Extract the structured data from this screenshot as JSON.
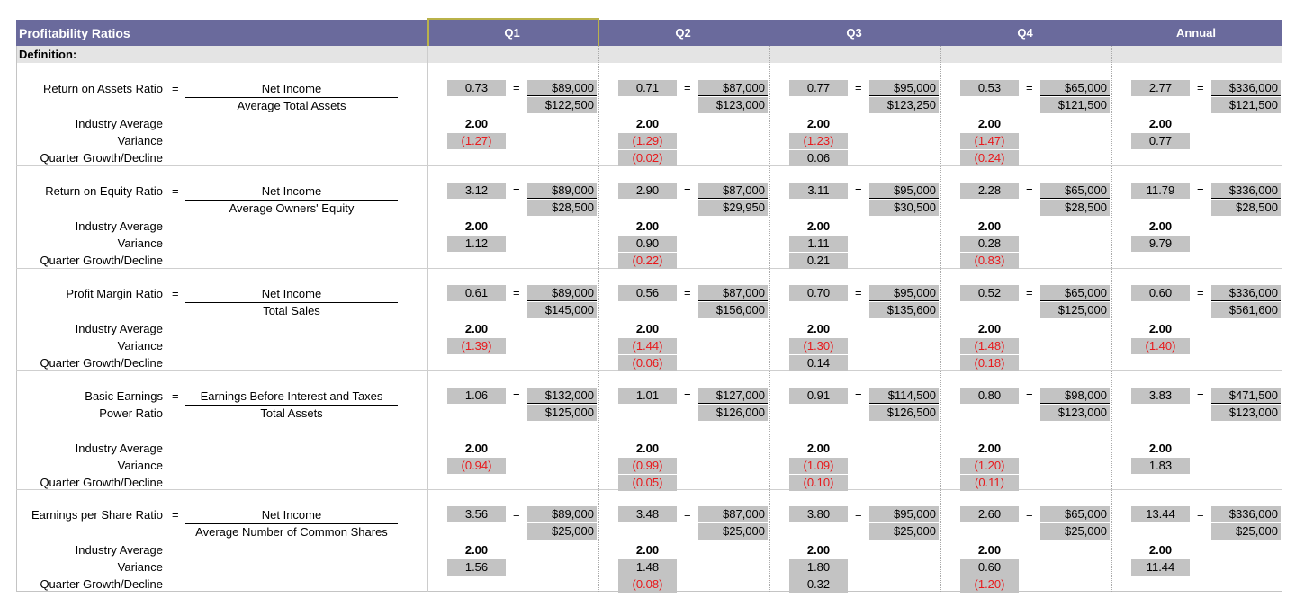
{
  "title": "Profitability Ratios",
  "definition_label": "Definition:",
  "columns": [
    "Q1",
    "Q2",
    "Q3",
    "Q4",
    "Annual"
  ],
  "equals": "=",
  "sections": [
    {
      "name": [
        "Return on Assets Ratio"
      ],
      "numerator": "Net Income",
      "denominator": "Average Total Assets",
      "labels": [
        "Industry Average",
        "Variance",
        "Quarter Growth/Decline"
      ],
      "quarters": [
        {
          "ratio": "0.73",
          "num": "$89,000",
          "den": "$122,500",
          "avg": "2.00",
          "var": "(1.27)",
          "var_neg": true,
          "growth": "",
          "growth_neg": false
        },
        {
          "ratio": "0.71",
          "num": "$87,000",
          "den": "$123,000",
          "avg": "2.00",
          "var": "(1.29)",
          "var_neg": true,
          "growth": "(0.02)",
          "growth_neg": true
        },
        {
          "ratio": "0.77",
          "num": "$95,000",
          "den": "$123,250",
          "avg": "2.00",
          "var": "(1.23)",
          "var_neg": true,
          "growth": "0.06",
          "growth_neg": false
        },
        {
          "ratio": "0.53",
          "num": "$65,000",
          "den": "$121,500",
          "avg": "2.00",
          "var": "(1.47)",
          "var_neg": true,
          "growth": "(0.24)",
          "growth_neg": true
        },
        {
          "ratio": "2.77",
          "num": "$336,000",
          "den": "$121,500",
          "avg": "2.00",
          "var": "0.77",
          "var_neg": false,
          "growth": "",
          "growth_neg": false
        }
      ]
    },
    {
      "name": [
        "Return on Equity Ratio"
      ],
      "numerator": "Net Income",
      "denominator": "Average Owners' Equity",
      "labels": [
        "Industry Average",
        "Variance",
        "Quarter Growth/Decline"
      ],
      "quarters": [
        {
          "ratio": "3.12",
          "num": "$89,000",
          "den": "$28,500",
          "avg": "2.00",
          "var": "1.12",
          "var_neg": false,
          "growth": "",
          "growth_neg": false
        },
        {
          "ratio": "2.90",
          "num": "$87,000",
          "den": "$29,950",
          "avg": "2.00",
          "var": "0.90",
          "var_neg": false,
          "growth": "(0.22)",
          "growth_neg": true
        },
        {
          "ratio": "3.11",
          "num": "$95,000",
          "den": "$30,500",
          "avg": "2.00",
          "var": "1.11",
          "var_neg": false,
          "growth": "0.21",
          "growth_neg": false
        },
        {
          "ratio": "2.28",
          "num": "$65,000",
          "den": "$28,500",
          "avg": "2.00",
          "var": "0.28",
          "var_neg": false,
          "growth": "(0.83)",
          "growth_neg": true
        },
        {
          "ratio": "11.79",
          "num": "$336,000",
          "den": "$28,500",
          "avg": "2.00",
          "var": "9.79",
          "var_neg": false,
          "growth": "",
          "growth_neg": false
        }
      ]
    },
    {
      "name": [
        "Profit Margin Ratio"
      ],
      "numerator": "Net Income",
      "denominator": "Total Sales",
      "labels": [
        "Industry Average",
        "Variance",
        "Quarter Growth/Decline"
      ],
      "quarters": [
        {
          "ratio": "0.61",
          "num": "$89,000",
          "den": "$145,000",
          "avg": "2.00",
          "var": "(1.39)",
          "var_neg": true,
          "growth": "",
          "growth_neg": false
        },
        {
          "ratio": "0.56",
          "num": "$87,000",
          "den": "$156,000",
          "avg": "2.00",
          "var": "(1.44)",
          "var_neg": true,
          "growth": "(0.06)",
          "growth_neg": true
        },
        {
          "ratio": "0.70",
          "num": "$95,000",
          "den": "$135,600",
          "avg": "2.00",
          "var": "(1.30)",
          "var_neg": true,
          "growth": "0.14",
          "growth_neg": false
        },
        {
          "ratio": "0.52",
          "num": "$65,000",
          "den": "$125,000",
          "avg": "2.00",
          "var": "(1.48)",
          "var_neg": true,
          "growth": "(0.18)",
          "growth_neg": true
        },
        {
          "ratio": "0.60",
          "num": "$336,000",
          "den": "$561,600",
          "avg": "2.00",
          "var": "(1.40)",
          "var_neg": true,
          "growth": "",
          "growth_neg": false
        }
      ]
    },
    {
      "name": [
        "Basic Earnings",
        "Power Ratio"
      ],
      "numerator": "Earnings Before Interest and Taxes",
      "denominator": "Total Assets",
      "labels": [
        "Industry Average",
        "Variance",
        "Quarter Growth/Decline"
      ],
      "quarters": [
        {
          "ratio": "1.06",
          "num": "$132,000",
          "den": "$125,000",
          "avg": "2.00",
          "var": "(0.94)",
          "var_neg": true,
          "growth": "",
          "growth_neg": false
        },
        {
          "ratio": "1.01",
          "num": "$127,000",
          "den": "$126,000",
          "avg": "2.00",
          "var": "(0.99)",
          "var_neg": true,
          "growth": "(0.05)",
          "growth_neg": true
        },
        {
          "ratio": "0.91",
          "num": "$114,500",
          "den": "$126,500",
          "avg": "2.00",
          "var": "(1.09)",
          "var_neg": true,
          "growth": "(0.10)",
          "growth_neg": true
        },
        {
          "ratio": "0.80",
          "num": "$98,000",
          "den": "$123,000",
          "avg": "2.00",
          "var": "(1.20)",
          "var_neg": true,
          "growth": "(0.11)",
          "growth_neg": true
        },
        {
          "ratio": "3.83",
          "num": "$471,500",
          "den": "$123,000",
          "avg": "2.00",
          "var": "1.83",
          "var_neg": false,
          "growth": "",
          "growth_neg": false
        }
      ]
    },
    {
      "name": [
        "Earnings per Share Ratio"
      ],
      "numerator": "Net Income",
      "denominator": "Average Number of Common Shares",
      "labels": [
        "Industry Average",
        "Variance",
        "Quarter Growth/Decline"
      ],
      "quarters": [
        {
          "ratio": "3.56",
          "num": "$89,000",
          "den": "$25,000",
          "avg": "2.00",
          "var": "1.56",
          "var_neg": false,
          "growth": "",
          "growth_neg": false
        },
        {
          "ratio": "3.48",
          "num": "$87,000",
          "den": "$25,000",
          "avg": "2.00",
          "var": "1.48",
          "var_neg": false,
          "growth": "(0.08)",
          "growth_neg": true
        },
        {
          "ratio": "3.80",
          "num": "$95,000",
          "den": "$25,000",
          "avg": "2.00",
          "var": "1.80",
          "var_neg": false,
          "growth": "0.32",
          "growth_neg": false
        },
        {
          "ratio": "2.60",
          "num": "$65,000",
          "den": "$25,000",
          "avg": "2.00",
          "var": "0.60",
          "var_neg": false,
          "growth": "(1.20)",
          "growth_neg": true
        },
        {
          "ratio": "13.44",
          "num": "$336,000",
          "den": "$25,000",
          "avg": "2.00",
          "var": "11.44",
          "var_neg": false,
          "growth": "",
          "growth_neg": false
        }
      ]
    }
  ]
}
